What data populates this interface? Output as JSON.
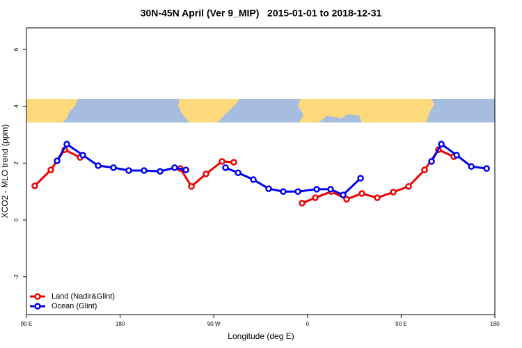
{
  "chart_data": {
    "type": "line",
    "title": "30N-45N April (Ver 9_MIP)   2015-01-01 to 2018-12-31",
    "xlabel": "Longitude (deg E)",
    "ylabel": "XCO2 - MLO trend (ppm)",
    "xlim": [
      90,
      540
    ],
    "ylim": [
      -3.33,
      6.76
    ],
    "xticks": [
      {
        "value": 90,
        "label": "90 E"
      },
      180,
      {
        "value": 270,
        "label": "90 W"
      },
      {
        "value": 360,
        "label": "0"
      },
      {
        "value": 450,
        "label": "90 E"
      },
      {
        "value": 540,
        "label": "180"
      }
    ],
    "yticks": [
      -2,
      0,
      2,
      4,
      6
    ],
    "legend": "bottomleft",
    "series": [
      {
        "name": "Land (Nadir&Glint)",
        "color": "#ee0000",
        "x": [
          98.0,
          113.4,
          126.8,
          141.5,
          null,
          237.8,
          248.5,
          262.5,
          277.9,
          289.2,
          null,
          354.8,
          367.5,
          382.9,
          397.6,
          412.3,
          427.0,
          442.4,
          457.1,
          472.5,
          485.8,
          500.5
        ],
        "values": [
          1.2,
          1.76,
          2.47,
          2.2,
          null,
          1.81,
          1.18,
          1.62,
          2.06,
          2.03,
          null,
          0.59,
          0.78,
          1.0,
          0.73,
          0.93,
          0.78,
          0.98,
          1.18,
          1.76,
          2.47,
          2.23
        ]
      },
      {
        "name": "Ocean (Glint)",
        "color": "#0000ee",
        "x": [
          119.4,
          128.8,
          144.2,
          158.9,
          173.6,
          188.3,
          203.0,
          218.4,
          232.4,
          243.2,
          null,
          281.2,
          293.3,
          308.0,
          322.7,
          336.7,
          350.8,
          368.8,
          382.2,
          394.2,
          411.0,
          null,
          479.2,
          488.6,
          503.3,
          517.4,
          532.1
        ],
        "values": [
          2.08,
          2.67,
          2.28,
          1.91,
          1.84,
          1.74,
          1.74,
          1.71,
          1.84,
          1.76,
          null,
          1.84,
          1.66,
          1.42,
          1.1,
          1.0,
          1.0,
          1.08,
          1.08,
          0.88,
          1.47,
          null,
          2.06,
          2.67,
          2.28,
          1.88,
          1.81
        ]
      }
    ]
  }
}
